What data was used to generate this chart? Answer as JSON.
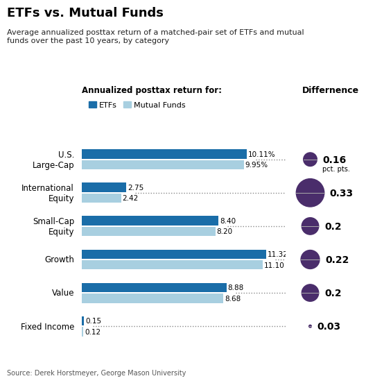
{
  "title": "ETFs vs. Mutual Funds",
  "subtitle": "Average annualized posttax return of a matched-pair set of ETFs and mutual\nfunds over the past 10 years, by category",
  "legend_title": "Annualized posttax return for:",
  "diff_label": "Differnence",
  "source": "Source: Derek Horstmeyer, George Mason University",
  "categories": [
    "U.S.\nLarge-Cap",
    "International\nEquity",
    "Small-Cap\nEquity",
    "Growth",
    "Value",
    "Fixed Income"
  ],
  "etf_values": [
    10.11,
    2.75,
    8.4,
    11.32,
    8.88,
    0.15
  ],
  "mf_values": [
    9.95,
    2.42,
    8.2,
    11.1,
    8.68,
    0.12
  ],
  "etf_labels": [
    "10.11%",
    "2.75",
    "8.40",
    "11.32",
    "8.88",
    "0.15"
  ],
  "mf_labels": [
    "9.95%",
    "2.42",
    "8.20",
    "11.10",
    "8.68",
    "0.12"
  ],
  "differences": [
    0.16,
    0.33,
    0.2,
    0.22,
    0.2,
    0.03
  ],
  "diff_labels": [
    "0.16",
    "0.33",
    "0.2",
    "0.22",
    "0.2",
    "0.03"
  ],
  "pct_pts_label": "pct. pts.",
  "etf_color": "#1a6da8",
  "mf_color": "#a8cfe0",
  "bubble_color": "#4a2d6b",
  "bar_height": 0.28,
  "bar_gap": 0.04,
  "max_val": 12.5
}
